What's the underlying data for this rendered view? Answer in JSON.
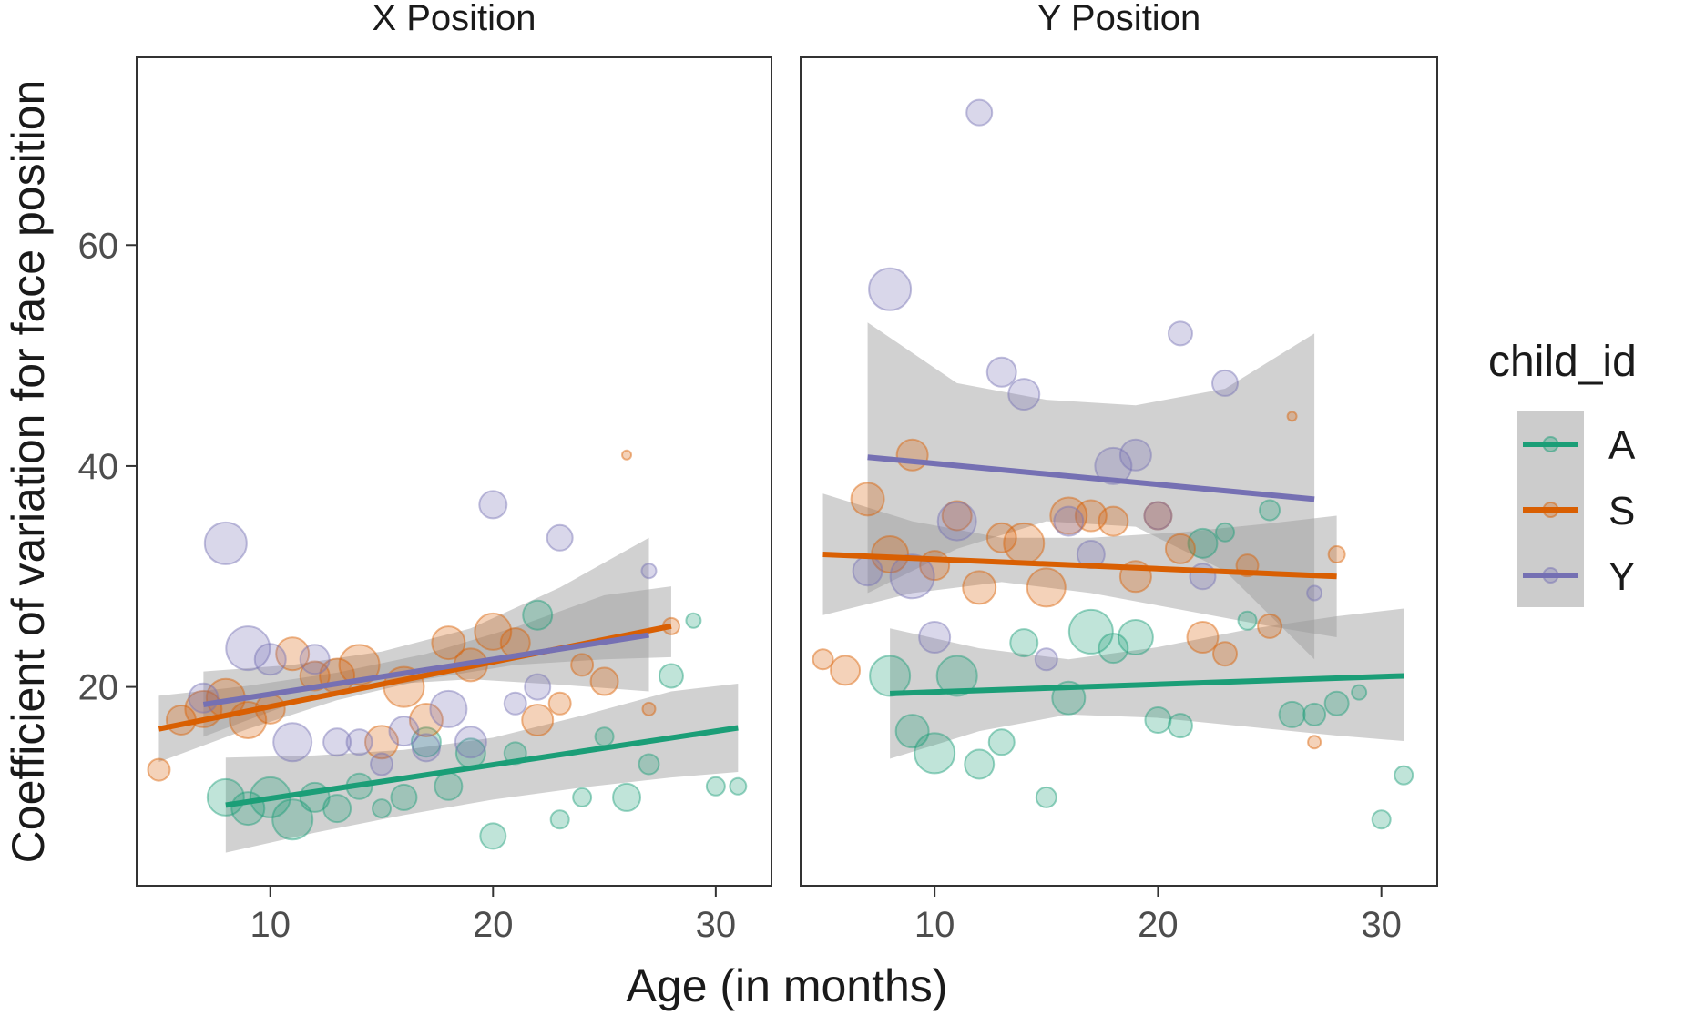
{
  "chart_data": {
    "type": "scatter",
    "xlabel": "Age (in months)",
    "ylabel": "Coefficient of variation for face position",
    "xlim": [
      4,
      32.5
    ],
    "ylim": [
      2,
      77
    ],
    "x_ticks": [
      "10",
      "20",
      "30"
    ],
    "y_ticks": [
      "20",
      "40",
      "60"
    ],
    "grid": false,
    "legend": {
      "title": "child_id",
      "placement": "right",
      "entries": [
        "A",
        "S",
        "Y"
      ]
    },
    "colors": {
      "A": "#1b9e77",
      "S": "#d95f02",
      "Y": "#7570b3",
      "ribbon": "#999999"
    },
    "panels": [
      {
        "title": "X Position",
        "series": [
          {
            "name": "A",
            "points": [
              [
                8,
                10,
                20
              ],
              [
                9,
                9,
                18
              ],
              [
                10,
                10,
                22
              ],
              [
                11,
                8,
                22
              ],
              [
                12,
                10,
                16
              ],
              [
                13,
                9,
                15
              ],
              [
                14,
                11,
                14
              ],
              [
                15,
                9,
                10
              ],
              [
                16,
                10,
                14
              ],
              [
                17,
                15,
                16
              ],
              [
                18,
                11,
                15
              ],
              [
                19,
                14,
                16
              ],
              [
                20,
                6.5,
                14
              ],
              [
                21,
                14,
                12
              ],
              [
                22,
                26.5,
                16
              ],
              [
                23,
                8,
                10
              ],
              [
                24,
                10,
                10
              ],
              [
                25,
                15.5,
                10
              ],
              [
                26,
                10,
                15
              ],
              [
                27,
                13,
                11
              ],
              [
                28,
                21,
                13
              ],
              [
                29,
                26,
                8
              ],
              [
                30,
                11,
                10
              ],
              [
                31,
                11,
                9
              ]
            ],
            "fit": [
              [
                8,
                9.3
              ],
              [
                31,
                16.3
              ]
            ],
            "ci": [
              [
                8,
                5.0,
                13.6
              ],
              [
                12,
                6.8,
                13.8
              ],
              [
                16,
                8.4,
                14.3
              ],
              [
                20,
                9.8,
                15.4
              ],
              [
                24,
                10.9,
                17.4
              ],
              [
                28,
                11.8,
                19.6
              ],
              [
                31,
                12.3,
                20.3
              ]
            ]
          },
          {
            "name": "S",
            "points": [
              [
                5,
                12.5,
                12
              ],
              [
                6,
                17,
                16
              ],
              [
                7,
                18,
                20
              ],
              [
                8,
                19,
                21
              ],
              [
                9,
                17,
                20
              ],
              [
                10,
                18,
                16
              ],
              [
                11,
                23,
                18
              ],
              [
                12,
                21,
                16
              ],
              [
                13,
                21,
                19
              ],
              [
                14,
                22,
                22
              ],
              [
                15,
                15,
                18
              ],
              [
                16,
                20,
                22
              ],
              [
                17,
                17,
                18
              ],
              [
                18,
                24,
                18
              ],
              [
                19,
                22,
                18
              ],
              [
                20,
                25,
                20
              ],
              [
                21,
                24,
                16
              ],
              [
                22,
                17,
                17
              ],
              [
                23,
                18.5,
                12
              ],
              [
                24,
                22,
                12
              ],
              [
                25,
                20.5,
                15
              ],
              [
                26,
                41,
                5
              ],
              [
                27,
                18,
                7
              ],
              [
                28,
                25.5,
                9
              ]
            ],
            "fit": [
              [
                5,
                16.2
              ],
              [
                28,
                25.5
              ]
            ],
            "ci": [
              [
                5,
                13.2,
                19.2
              ],
              [
                9,
                16.2,
                20.1
              ],
              [
                13,
                18.8,
                21.3
              ],
              [
                17,
                20.7,
                23.0
              ],
              [
                21,
                22.0,
                25.4
              ],
              [
                25,
                22.5,
                28.3
              ],
              [
                28,
                22.7,
                29.1
              ]
            ]
          },
          {
            "name": "Y",
            "points": [
              [
                7,
                19,
                16
              ],
              [
                8,
                33,
                23
              ],
              [
                9,
                23.5,
                24
              ],
              [
                10,
                22.5,
                17
              ],
              [
                11,
                15,
                21
              ],
              [
                12,
                22.5,
                16
              ],
              [
                13,
                15,
                15
              ],
              [
                14,
                15,
                14
              ],
              [
                15,
                13,
                12
              ],
              [
                16,
                16,
                16
              ],
              [
                17,
                14.5,
                15
              ],
              [
                18,
                18,
                20
              ],
              [
                19,
                15,
                17
              ],
              [
                20,
                36.5,
                15
              ],
              [
                21,
                18.5,
                12
              ],
              [
                22,
                20,
                14
              ],
              [
                23,
                33.5,
                14
              ],
              [
                27,
                30.5,
                8
              ]
            ],
            "fit": [
              [
                7,
                18.4
              ],
              [
                27,
                24.7
              ]
            ],
            "ci": [
              [
                7,
                15.5,
                21.4
              ],
              [
                11,
                18.5,
                22.0
              ],
              [
                15,
                20.2,
                23.2
              ],
              [
                19,
                20.7,
                25.3
              ],
              [
                23,
                20.2,
                29.0
              ],
              [
                27,
                19.6,
                33.5
              ]
            ]
          }
        ]
      },
      {
        "title": "Y Position",
        "series": [
          {
            "name": "A",
            "points": [
              [
                8,
                21,
                22
              ],
              [
                9,
                16,
                18
              ],
              [
                10,
                14,
                22
              ],
              [
                11,
                21,
                22
              ],
              [
                12,
                13,
                16
              ],
              [
                13,
                15,
                14
              ],
              [
                14,
                24,
                15
              ],
              [
                15,
                10,
                11
              ],
              [
                16,
                19,
                18
              ],
              [
                17,
                25,
                24
              ],
              [
                18,
                23.5,
                16
              ],
              [
                19,
                24.5,
                19
              ],
              [
                20,
                17,
                14
              ],
              [
                21,
                16.5,
                13
              ],
              [
                22,
                33,
                16
              ],
              [
                23,
                34,
                10
              ],
              [
                24,
                26,
                10
              ],
              [
                25,
                36,
                11
              ],
              [
                26,
                17.5,
                14
              ],
              [
                27,
                17.5,
                12
              ],
              [
                28,
                18.5,
                13
              ],
              [
                29,
                19.5,
                8
              ],
              [
                30,
                8,
                10
              ],
              [
                31,
                12,
                10
              ]
            ],
            "fit": [
              [
                8,
                19.4
              ],
              [
                31,
                21.0
              ]
            ],
            "ci": [
              [
                8,
                13.5,
                25.3
              ],
              [
                12,
                16.0,
                23.5
              ],
              [
                16,
                17.5,
                22.5
              ],
              [
                20,
                17.2,
                23.6
              ],
              [
                24,
                16.4,
                25.2
              ],
              [
                28,
                15.6,
                26.4
              ],
              [
                31,
                15.1,
                27.1
              ]
            ]
          },
          {
            "name": "S",
            "points": [
              [
                5,
                22.5,
                11
              ],
              [
                6,
                21.5,
                16
              ],
              [
                7,
                37,
                18
              ],
              [
                8,
                32,
                20
              ],
              [
                9,
                41,
                17
              ],
              [
                10,
                31,
                16
              ],
              [
                11,
                35.5,
                16
              ],
              [
                12,
                29,
                18
              ],
              [
                13,
                33.5,
                16
              ],
              [
                14,
                33,
                22
              ],
              [
                15,
                29,
                21
              ],
              [
                16,
                35.5,
                20
              ],
              [
                17,
                35.5,
                17
              ],
              [
                18,
                35,
                16
              ],
              [
                19,
                30,
                17
              ],
              [
                20,
                35.5,
                15
              ],
              [
                21,
                32.5,
                16
              ],
              [
                22,
                24.5,
                17
              ],
              [
                23,
                23,
                13
              ],
              [
                24,
                31,
                12
              ],
              [
                25,
                25.5,
                13
              ],
              [
                26,
                44.5,
                5
              ],
              [
                27,
                15,
                7
              ],
              [
                28,
                32,
                9
              ]
            ],
            "fit": [
              [
                5,
                32.0
              ],
              [
                28,
                30.0
              ]
            ],
            "ci": [
              [
                5,
                26.5,
                37.5
              ],
              [
                9,
                28.5,
                35.0
              ],
              [
                13,
                29.5,
                33.5
              ],
              [
                17,
                28.5,
                33.5
              ],
              [
                21,
                27.0,
                34.0
              ],
              [
                25,
                25.5,
                34.8
              ],
              [
                28,
                24.5,
                35.5
              ]
            ]
          },
          {
            "name": "Y",
            "points": [
              [
                7,
                30.5,
                16
              ],
              [
                8,
                56,
                23
              ],
              [
                9,
                30,
                24
              ],
              [
                10,
                24.5,
                17
              ],
              [
                11,
                35,
                21
              ],
              [
                12,
                72,
                14
              ],
              [
                13,
                48.5,
                16
              ],
              [
                14,
                46.5,
                17
              ],
              [
                15,
                22.5,
                12
              ],
              [
                16,
                35,
                16
              ],
              [
                17,
                32,
                15
              ],
              [
                18,
                40,
                20
              ],
              [
                19,
                41,
                17
              ],
              [
                20,
                35.5,
                15
              ],
              [
                21,
                52,
                13
              ],
              [
                22,
                30,
                14
              ],
              [
                23,
                47.5,
                14
              ],
              [
                27,
                28.5,
                8
              ]
            ],
            "fit": [
              [
                7,
                40.8
              ],
              [
                27,
                37.0
              ]
            ],
            "ci": [
              [
                7,
                28.5,
                53.0
              ],
              [
                11,
                32.5,
                47.5
              ],
              [
                15,
                35.0,
                46.0
              ],
              [
                19,
                34.5,
                45.5
              ],
              [
                23,
                30.5,
                47.0
              ],
              [
                27,
                22.5,
                52.0
              ]
            ]
          }
        ]
      }
    ]
  }
}
